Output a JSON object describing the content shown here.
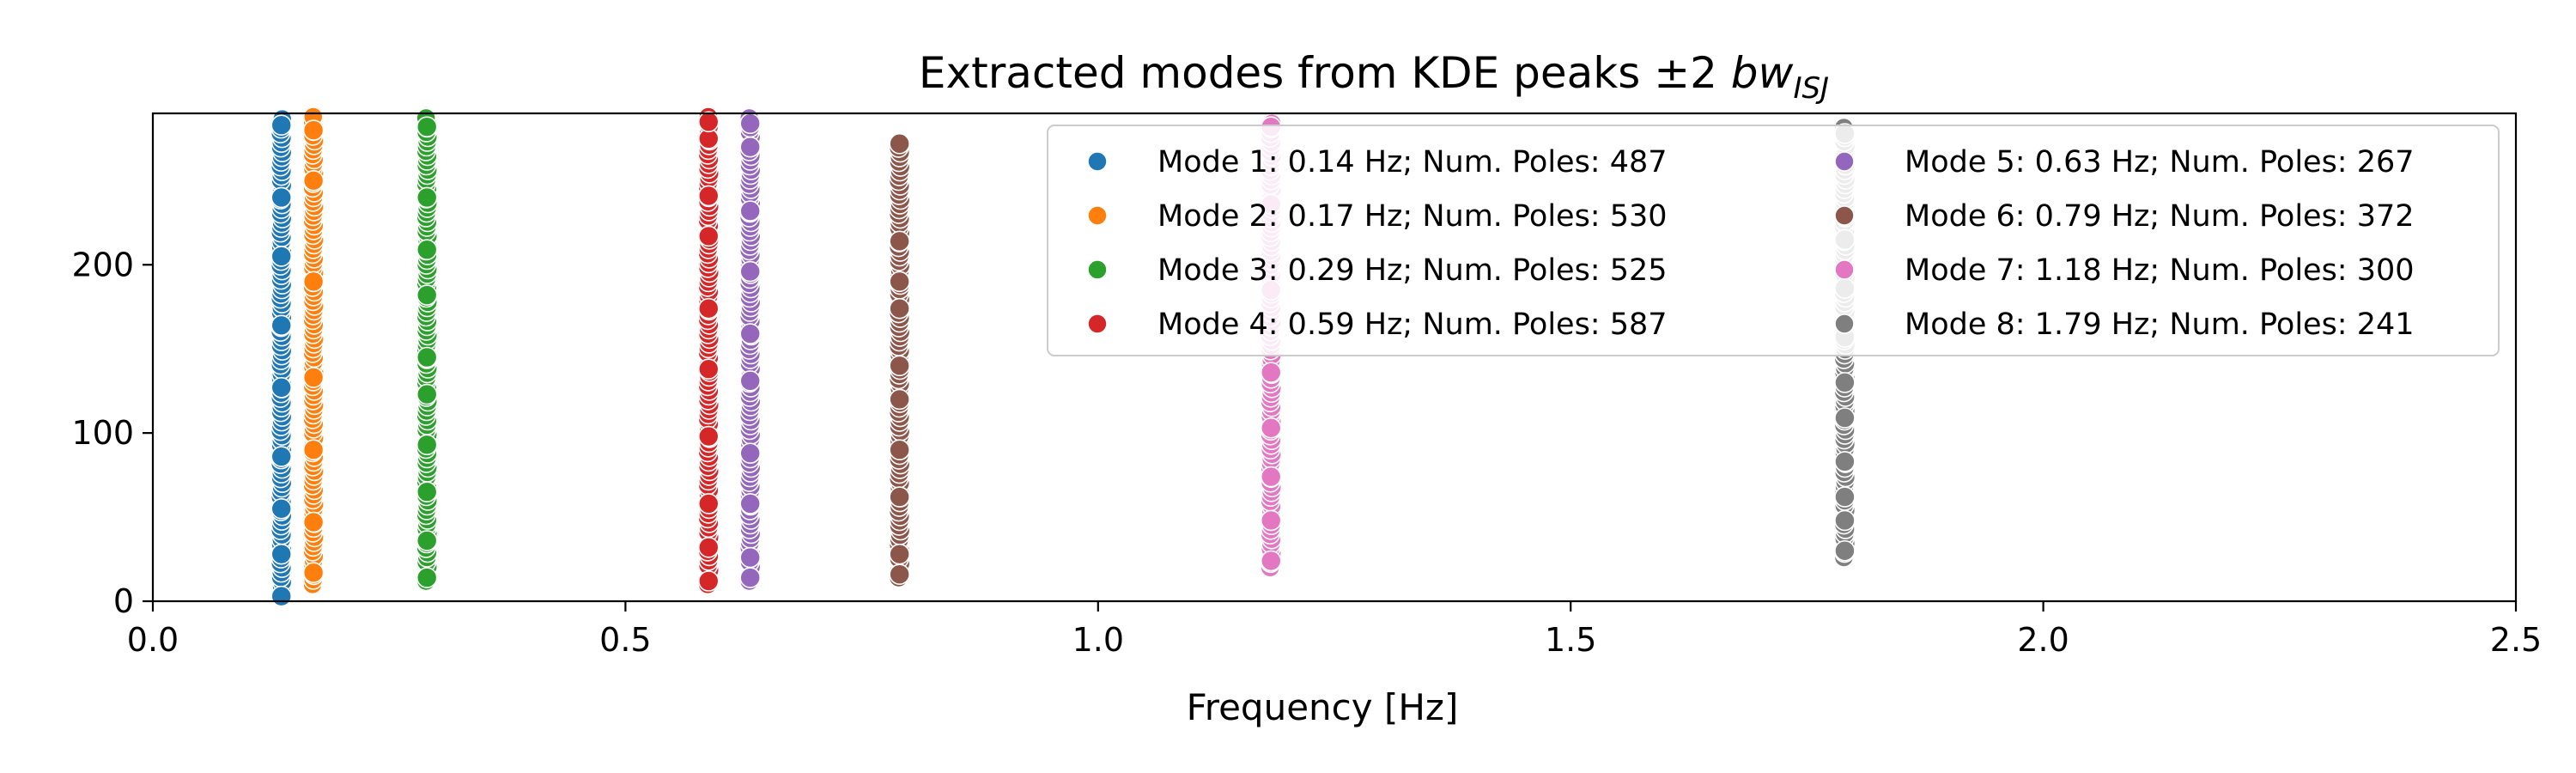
{
  "chart_data": {
    "type": "scatter",
    "title": {
      "main": "Extracted modes from KDE peaks ±2 ",
      "symbol": "bw",
      "subscript": "ISJ"
    },
    "xlabel": "Frequency [Hz]",
    "ylabel": "",
    "xlim": [
      0.0,
      2.5
    ],
    "ylim": [
      0,
      290
    ],
    "xticks": [
      0.0,
      0.5,
      1.0,
      1.5,
      2.0,
      2.5
    ],
    "xtick_labels": [
      "0.0",
      "0.5",
      "1.0",
      "1.5",
      "2.0",
      "2.5"
    ],
    "yticks": [
      0,
      100,
      200
    ],
    "ytick_labels": [
      "0",
      "100",
      "200"
    ],
    "grid": false,
    "legend_position": "top-right",
    "legend_columns": 2,
    "series": [
      {
        "name": "Mode 1: 0.14 Hz; Num. Poles: 487",
        "color": "#1f77b4",
        "x": 0.136,
        "y_min": 3,
        "y_max": 290,
        "highlight_y": [
          3,
          28,
          55,
          86,
          127,
          164,
          205,
          240,
          283
        ]
      },
      {
        "name": "Mode 2: 0.17 Hz; Num. Poles: 530",
        "color": "#ff7f0e",
        "x": 0.17,
        "y_min": 10,
        "y_max": 290,
        "highlight_y": [
          17,
          47,
          90,
          133,
          190,
          250,
          280
        ]
      },
      {
        "name": "Mode 3: 0.29 Hz; Num. Poles: 525",
        "color": "#2ca02c",
        "x": 0.29,
        "y_min": 12,
        "y_max": 288,
        "highlight_y": [
          14,
          36,
          65,
          93,
          123,
          145,
          182,
          209,
          240,
          282
        ]
      },
      {
        "name": "Mode 4: 0.59 Hz; Num. Poles: 587",
        "color": "#d62728",
        "x": 0.588,
        "y_min": 10,
        "y_max": 290,
        "highlight_y": [
          12,
          32,
          58,
          98,
          138,
          174,
          217,
          241,
          275,
          285
        ]
      },
      {
        "name": "Mode 5: 0.63 Hz; Num. Poles: 267",
        "color": "#9467bd",
        "x": 0.632,
        "y_min": 12,
        "y_max": 290,
        "highlight_y": [
          14,
          26,
          58,
          88,
          131,
          159,
          196,
          232,
          270,
          284
        ]
      },
      {
        "name": "Mode 6: 0.79 Hz; Num. Poles: 372",
        "color": "#8c564b",
        "x": 0.79,
        "y_min": 14,
        "y_max": 272,
        "highlight_y": [
          16,
          28,
          62,
          90,
          120,
          140,
          174,
          190,
          214,
          272
        ]
      },
      {
        "name": "Mode 7: 1.18 Hz; Num. Poles: 300",
        "color": "#e377c2",
        "x": 1.183,
        "y_min": 20,
        "y_max": 285,
        "highlight_y": [
          24,
          48,
          74,
          103,
          136,
          185,
          236,
          282
        ]
      },
      {
        "name": "Mode 8: 1.79 Hz; Num. Poles: 241",
        "color": "#7f7f7f",
        "x": 1.79,
        "y_min": 26,
        "y_max": 282,
        "highlight_y": [
          30,
          48,
          62,
          83,
          109,
          130,
          157,
          186,
          215,
          278
        ]
      }
    ]
  }
}
